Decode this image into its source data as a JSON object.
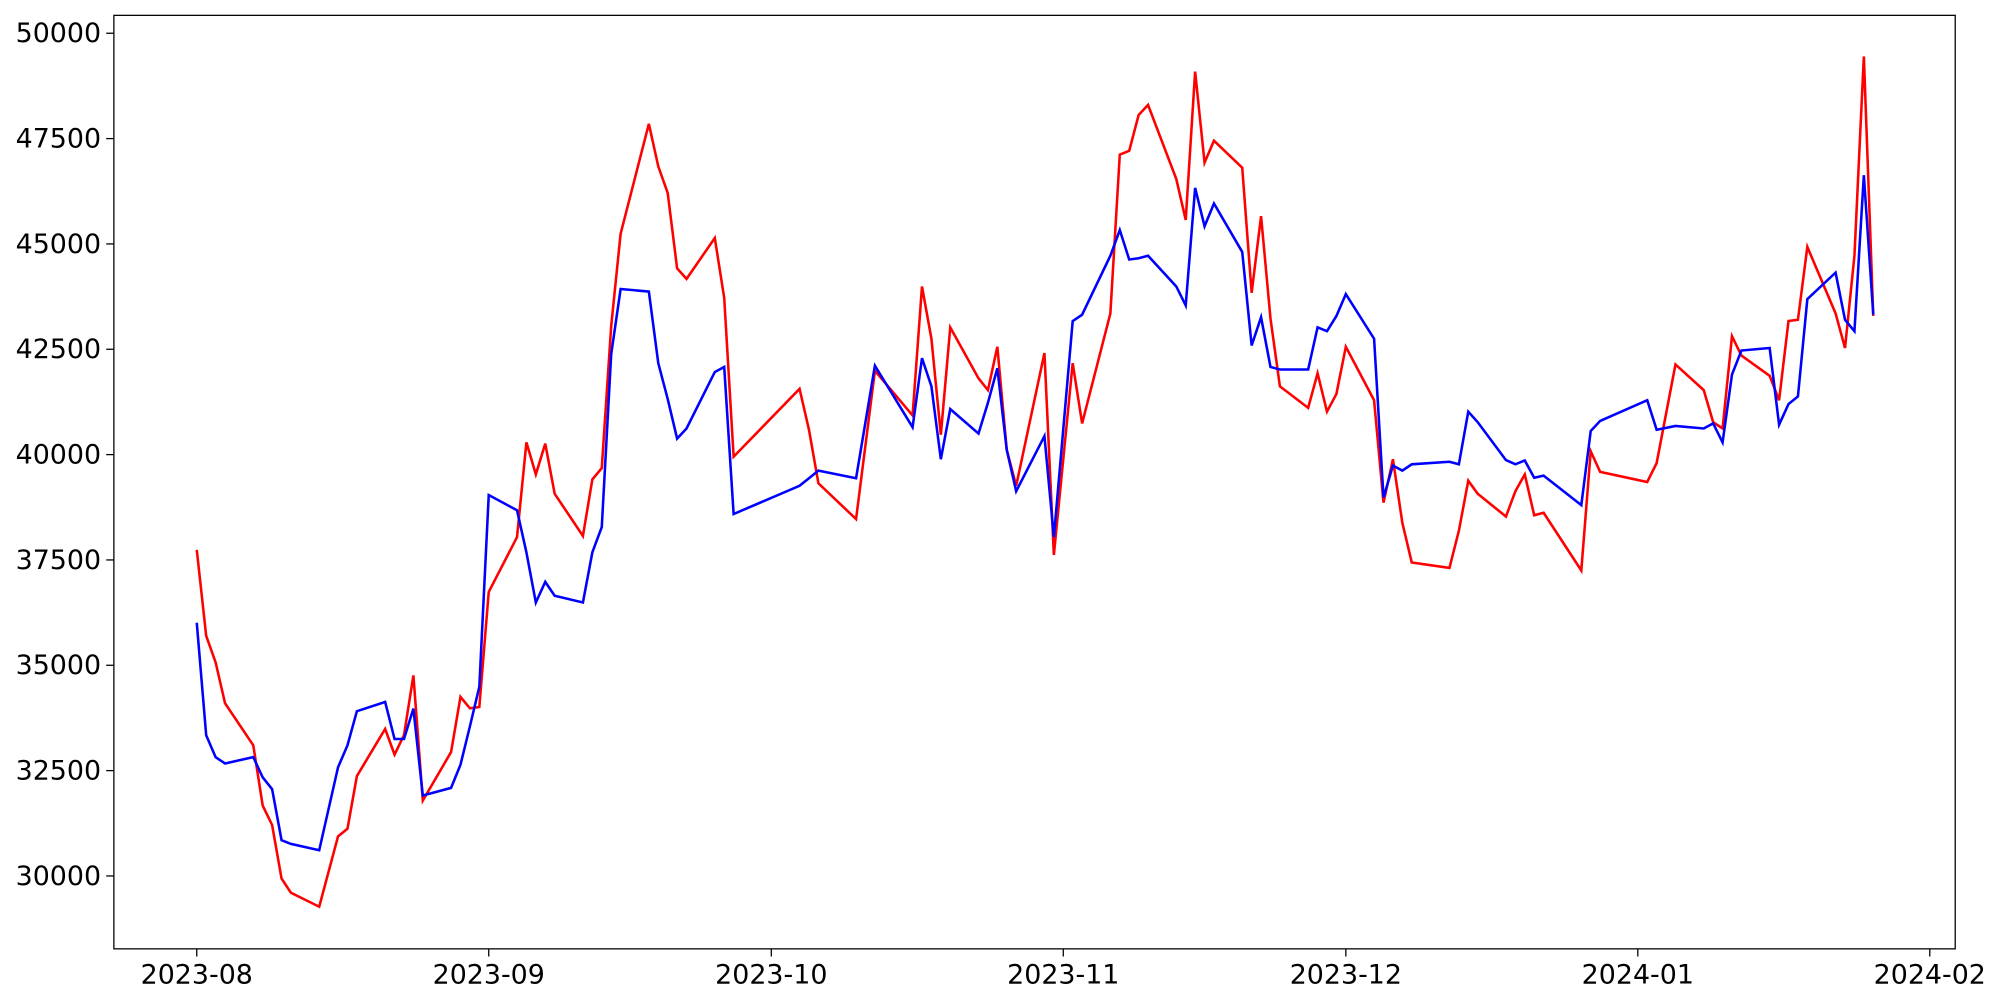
{
  "chart_data": {
    "type": "line",
    "x": [
      0,
      1,
      2,
      3,
      6,
      7,
      8,
      9,
      10,
      13,
      15,
      16,
      17,
      20,
      21,
      22,
      23,
      24,
      27,
      28,
      29,
      30,
      31,
      34,
      35,
      36,
      37,
      38,
      41,
      42,
      43,
      44,
      45,
      48,
      49,
      50,
      51,
      52,
      55,
      56,
      57,
      64,
      65,
      66,
      70,
      72,
      76,
      77,
      78,
      79,
      80,
      83,
      84,
      85,
      86,
      87,
      90,
      91,
      93,
      94,
      97,
      98,
      99,
      100,
      101,
      104,
      105,
      106,
      107,
      108,
      111,
      112,
      113,
      114,
      115,
      118,
      119,
      120,
      121,
      122,
      125,
      126,
      127,
      128,
      129,
      133,
      134,
      135,
      136,
      139,
      140,
      141,
      142,
      143,
      147,
      148,
      149,
      154,
      155,
      157,
      160,
      161,
      162,
      163,
      164,
      167,
      168,
      169,
      170,
      171,
      174,
      175,
      176,
      177,
      178
    ],
    "series": [
      {
        "name": "red",
        "color": "#ff0000",
        "values": [
          37740,
          35700,
          35070,
          34100,
          33100,
          31670,
          31210,
          29940,
          29600,
          29270,
          30940,
          31120,
          32370,
          33490,
          32880,
          33340,
          34760,
          31790,
          32940,
          34250,
          33980,
          34010,
          36740,
          38040,
          40290,
          39530,
          40260,
          39070,
          38070,
          39410,
          39680,
          43050,
          45240,
          47850,
          46840,
          46210,
          44420,
          44170,
          45140,
          43720,
          39950,
          41560,
          40590,
          39320,
          38470,
          41990,
          40930,
          43990,
          42750,
          40470,
          43020,
          41810,
          41530,
          42560,
          40110,
          39260,
          42410,
          37620,
          42170,
          40740,
          43350,
          47120,
          47210,
          48060,
          48300,
          46540,
          45570,
          49090,
          46930,
          47450,
          46810,
          43840,
          45660,
          43230,
          41620,
          41110,
          41930,
          41020,
          41440,
          42560,
          41290,
          38860,
          39890,
          38380,
          37440,
          37310,
          38190,
          39380,
          39070,
          38530,
          39130,
          39530,
          38560,
          38620,
          37250,
          40080,
          39590,
          39350,
          39800,
          42140,
          41530,
          40770,
          40620,
          42810,
          42350,
          41870,
          41290,
          43170,
          43200,
          44930,
          43350,
          42530,
          44720,
          49450,
          43290
        ]
      },
      {
        "name": "blue",
        "color": "#0000ff",
        "values": [
          36010,
          33340,
          32820,
          32670,
          32820,
          32340,
          32060,
          30850,
          30760,
          30610,
          32580,
          33100,
          33910,
          34130,
          33250,
          33250,
          33970,
          31910,
          32090,
          32640,
          33550,
          34490,
          39040,
          38680,
          37680,
          36490,
          36980,
          36650,
          36490,
          37680,
          38280,
          42380,
          43930,
          43870,
          42170,
          41320,
          40380,
          40620,
          41960,
          42080,
          38590,
          39260,
          39440,
          39620,
          39440,
          42110,
          40650,
          42290,
          41620,
          39890,
          41080,
          40500,
          41230,
          42050,
          40110,
          39130,
          40440,
          38040,
          43170,
          43320,
          44720,
          45330,
          44630,
          44660,
          44720,
          43990,
          43540,
          46330,
          45420,
          45960,
          44810,
          42590,
          43260,
          42080,
          42020,
          42020,
          43020,
          42930,
          43290,
          43810,
          42750,
          38980,
          39740,
          39620,
          39770,
          39830,
          39770,
          41020,
          40770,
          39870,
          39770,
          39860,
          39450,
          39500,
          38800,
          40560,
          40800,
          41290,
          40590,
          40680,
          40620,
          40740,
          40290,
          41900,
          42470,
          42530,
          40710,
          41200,
          41380,
          43690,
          44320,
          43200,
          42930,
          46630,
          43320
        ]
      }
    ],
    "xlim": [
      -8.8,
      186.7
    ],
    "xticks": [
      {
        "value": 0,
        "label": "2023-08"
      },
      {
        "value": 31,
        "label": "2023-09"
      },
      {
        "value": 61,
        "label": "2023-10"
      },
      {
        "value": 92,
        "label": "2023-11"
      },
      {
        "value": 122,
        "label": "2023-12"
      },
      {
        "value": 153,
        "label": "2024-01"
      },
      {
        "value": 184,
        "label": "2024-02"
      }
    ],
    "ylim": [
      28270,
      50425
    ],
    "yticks": [
      30000,
      32500,
      35000,
      37500,
      40000,
      42500,
      45000,
      47500,
      50000
    ],
    "grid": false
  }
}
